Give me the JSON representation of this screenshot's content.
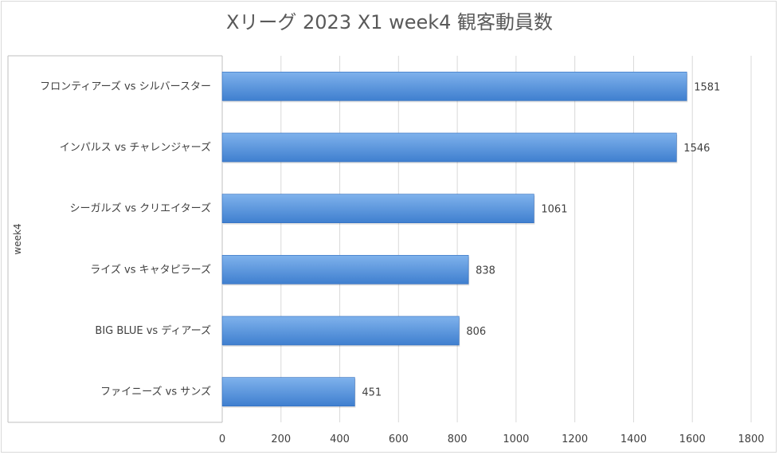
{
  "chart_data": {
    "type": "bar",
    "orientation": "horizontal",
    "title": "Xリーグ 2023 X1 week4 観客動員数",
    "group_label": "week4",
    "categories": [
      "フロンティアーズ vs シルバースター",
      "インパルス vs チャレンジャーズ",
      "シーガルズ vs クリエイターズ",
      "ライズ vs キャタピラーズ",
      "BIG BLUE vs ディアーズ",
      "ファイニーズ vs サンズ"
    ],
    "values": [
      1581,
      1546,
      1061,
      838,
      806,
      451
    ],
    "xlim": [
      0,
      1800
    ],
    "x_ticks": [
      0,
      200,
      400,
      600,
      800,
      1000,
      1200,
      1400,
      1600,
      1800
    ],
    "grid": true,
    "legend": false,
    "data_labels": true,
    "colors": {
      "bar_top": "#7fb2ec",
      "bar_bottom": "#3f7fcf",
      "bar_edge": "#2f6bbd",
      "grid": "#d9d9d9",
      "axis": "#bfbfbf"
    }
  }
}
